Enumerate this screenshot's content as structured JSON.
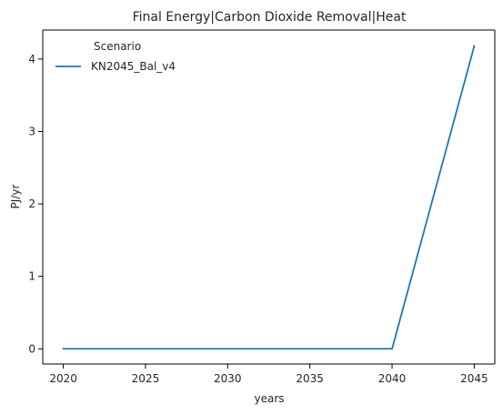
{
  "chart_data": {
    "type": "line",
    "title": "Final Energy|Carbon Dioxide Removal|Heat",
    "xlabel": "years",
    "ylabel": "PJ/yr",
    "x": [
      2020,
      2025,
      2030,
      2035,
      2040,
      2045
    ],
    "xticks": [
      "2020",
      "2025",
      "2030",
      "2035",
      "2040",
      "2045"
    ],
    "yticks": [
      "0",
      "1",
      "2",
      "3",
      "4"
    ],
    "xlim": [
      2018.75,
      2046.25
    ],
    "ylim": [
      -0.21,
      4.4
    ],
    "grid": false,
    "legend": {
      "title": "Scenario",
      "placement": "top-left"
    },
    "series": [
      {
        "name": "KN2045_Bal_v4",
        "color": "#1f77b4",
        "values": [
          0,
          0,
          0,
          0,
          0,
          4.18
        ]
      }
    ]
  }
}
